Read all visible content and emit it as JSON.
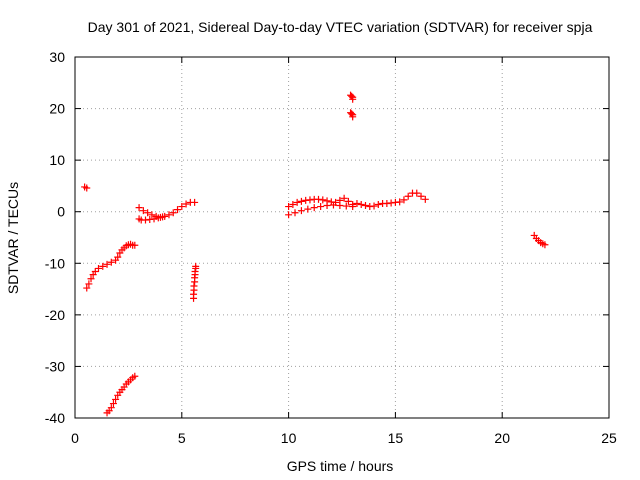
{
  "chart_data": {
    "type": "scatter",
    "title": "Day 301 of 2021, Sidereal Day-to-day VTEC variation (SDTVAR) for receiver spja",
    "xlabel": "GPS time / hours",
    "ylabel": "SDTVAR / TECUs",
    "xlim": [
      0,
      25
    ],
    "ylim": [
      -40,
      30
    ],
    "xticks": [
      "0",
      "5",
      "10",
      "15",
      "20",
      "25"
    ],
    "yticks": [
      "-40",
      "-30",
      "-20",
      "-10",
      "0",
      "10",
      "20",
      "30"
    ],
    "grid": true,
    "marker": "plus",
    "color": "#ff0000",
    "series": [
      {
        "segments": [
          {
            "x": [
              0.45,
              0.55
            ],
            "y": [
              4.8,
              4.6
            ]
          },
          {
            "x": [
              0.55,
              0.65,
              0.75,
              0.85,
              0.95,
              1.1,
              1.3,
              1.5,
              1.7,
              1.9,
              2.0,
              2.1,
              2.2,
              2.3,
              2.4,
              2.5,
              2.6,
              2.7,
              2.8
            ],
            "y": [
              -14.8,
              -14.0,
              -13.0,
              -12.2,
              -11.6,
              -11.0,
              -10.6,
              -10.2,
              -9.8,
              -9.4,
              -8.8,
              -8.0,
              -7.4,
              -7.0,
              -6.6,
              -6.4,
              -6.3,
              -6.5,
              -6.5
            ]
          },
          {
            "x": [
              1.5,
              1.6,
              1.7,
              1.8,
              1.9,
              2.0,
              2.1,
              2.2,
              2.3,
              2.4,
              2.5,
              2.6,
              2.7,
              2.8
            ],
            "y": [
              -39.0,
              -38.6,
              -38.0,
              -37.2,
              -36.4,
              -35.6,
              -35.0,
              -34.5,
              -34.0,
              -33.4,
              -33.0,
              -32.6,
              -32.2,
              -31.9
            ]
          },
          {
            "x": [
              3.0,
              3.2,
              3.4,
              3.6,
              3.8,
              4.0,
              4.2,
              4.4,
              4.6,
              4.8,
              5.0,
              5.2,
              5.4,
              5.6
            ],
            "y": [
              0.8,
              0.2,
              -0.2,
              -0.6,
              -0.9,
              -1.1,
              -0.9,
              -0.6,
              -0.2,
              0.4,
              1.0,
              1.5,
              1.8,
              1.8
            ]
          },
          {
            "x": [
              3.0,
              3.1,
              3.3,
              3.5,
              3.7,
              3.9,
              4.1
            ],
            "y": [
              -1.4,
              -1.6,
              -1.6,
              -1.5,
              -1.4,
              -1.2,
              -1.0
            ]
          },
          {
            "x": [
              5.55,
              5.55,
              5.57,
              5.57,
              5.6,
              5.6,
              5.62,
              5.62,
              5.65,
              5.65
            ],
            "y": [
              -16.8,
              -16.0,
              -15.2,
              -14.4,
              -13.6,
              -12.8,
              -12.2,
              -11.6,
              -11.0,
              -10.6
            ]
          },
          {
            "x": [
              10.0,
              10.2,
              10.4,
              10.6,
              10.8,
              11.0,
              11.2,
              11.4,
              11.6,
              11.8,
              12.0,
              12.2,
              12.4,
              12.6,
              12.8,
              13.0
            ],
            "y": [
              1.0,
              1.4,
              1.8,
              2.0,
              2.2,
              2.3,
              2.4,
              2.4,
              2.3,
              2.1,
              1.9,
              1.8,
              2.2,
              2.6,
              2.0,
              1.4
            ]
          },
          {
            "x": [
              10.0,
              10.3,
              10.6,
              10.9,
              11.2,
              11.5,
              11.8,
              12.1,
              12.4,
              12.7,
              13.0
            ],
            "y": [
              -0.6,
              -0.2,
              0.2,
              0.5,
              0.8,
              1.0,
              1.2,
              1.3,
              1.2,
              1.1,
              1.0
            ]
          },
          {
            "x": [
              12.9,
              13.0,
              13.0,
              12.95
            ],
            "y": [
              22.6,
              22.2,
              21.8,
              22.4
            ]
          },
          {
            "x": [
              12.9,
              13.0,
              13.0,
              12.95
            ],
            "y": [
              19.2,
              18.8,
              18.4,
              19.0
            ]
          },
          {
            "x": [
              13.2,
              13.4,
              13.6,
              13.8,
              14.0,
              14.2,
              14.4,
              14.6,
              14.8,
              15.0,
              15.2,
              15.4,
              15.6,
              15.8,
              16.0,
              16.2,
              16.4
            ],
            "y": [
              1.6,
              1.4,
              1.2,
              1.0,
              1.1,
              1.4,
              1.6,
              1.6,
              1.7,
              1.8,
              1.9,
              2.3,
              3.0,
              3.6,
              3.6,
              3.0,
              2.4
            ]
          },
          {
            "x": [
              21.5,
              21.6,
              21.7,
              21.8,
              21.9,
              22.0
            ],
            "y": [
              -4.6,
              -5.2,
              -5.6,
              -6.0,
              -6.2,
              -6.4
            ]
          }
        ]
      }
    ]
  }
}
